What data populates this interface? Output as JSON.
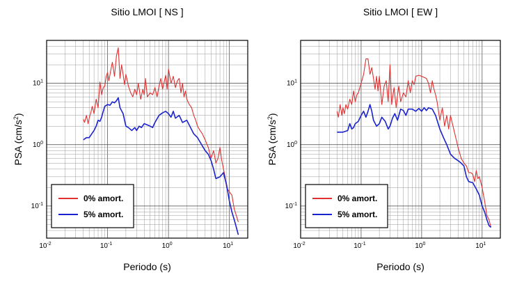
{
  "chart_data": [
    {
      "type": "line",
      "title": "Sitio LMOI [ NS ]",
      "xlabel": "Periodo (s)",
      "ylabel": "PSA (cm/s",
      "ylabel_sup": "2",
      "ylabel_close": ")",
      "xscale": "log",
      "yscale": "log",
      "xlim": [
        0.01,
        20
      ],
      "ylim": [
        0.03,
        50
      ],
      "grid": true,
      "legend_position": "bottom-left",
      "x_ticks": [
        {
          "base": "10",
          "exp": "-2"
        },
        {
          "base": "10",
          "exp": "-1"
        },
        {
          "base": "10",
          "exp": "0"
        },
        {
          "base": "10",
          "exp": "1"
        }
      ],
      "y_ticks": [
        {
          "base": "10",
          "exp": "-1"
        },
        {
          "base": "10",
          "exp": "0"
        },
        {
          "base": "10",
          "exp": "1"
        }
      ],
      "series": [
        {
          "name": "0% amort.",
          "color": "#e03030",
          "x": [
            0.04,
            0.042,
            0.045,
            0.048,
            0.05,
            0.053,
            0.056,
            0.06,
            0.065,
            0.07,
            0.075,
            0.08,
            0.085,
            0.09,
            0.095,
            0.1,
            0.105,
            0.11,
            0.115,
            0.12,
            0.13,
            0.14,
            0.15,
            0.16,
            0.17,
            0.18,
            0.19,
            0.2,
            0.22,
            0.24,
            0.26,
            0.28,
            0.3,
            0.32,
            0.35,
            0.38,
            0.4,
            0.42,
            0.45,
            0.5,
            0.55,
            0.6,
            0.65,
            0.7,
            0.75,
            0.8,
            0.85,
            0.9,
            0.95,
            1.0,
            1.1,
            1.2,
            1.3,
            1.4,
            1.5,
            1.6,
            1.7,
            1.8,
            1.9,
            2.0,
            2.2,
            2.4,
            2.6,
            2.8,
            3.0,
            3.3,
            3.6,
            4.0,
            4.5,
            5.0,
            5.5,
            6.0,
            6.5,
            7.0,
            7.5,
            8.0,
            8.5,
            9.0,
            10.0,
            11.0,
            12.0,
            13.0,
            14.0
          ],
          "values": [
            2.6,
            2.3,
            3.0,
            2.2,
            2.7,
            3.3,
            4.2,
            3.2,
            5.5,
            4.0,
            10.5,
            6.5,
            8.5,
            9.0,
            13.0,
            15.0,
            11.0,
            14.0,
            18.0,
            22.0,
            13.0,
            28.0,
            38.0,
            12.0,
            20.0,
            14.0,
            9.5,
            14.0,
            9.0,
            7.0,
            6.0,
            8.0,
            6.5,
            10.0,
            5.5,
            8.0,
            6.5,
            12.0,
            6.0,
            7.0,
            6.5,
            8.5,
            6.0,
            9.0,
            12.0,
            8.0,
            10.5,
            13.5,
            8.0,
            17.0,
            10.0,
            13.0,
            8.5,
            11.0,
            12.0,
            7.0,
            10.0,
            6.0,
            7.5,
            5.5,
            4.5,
            4.0,
            3.0,
            2.5,
            2.0,
            1.7,
            1.5,
            1.2,
            0.9,
            0.6,
            0.8,
            0.5,
            0.6,
            0.9,
            0.55,
            0.4,
            0.3,
            0.2,
            0.17,
            0.15,
            0.09,
            0.07,
            0.055
          ]
        },
        {
          "name": "5% amort.",
          "color": "#1a22d0",
          "x": [
            0.04,
            0.045,
            0.05,
            0.055,
            0.06,
            0.065,
            0.07,
            0.075,
            0.08,
            0.085,
            0.09,
            0.1,
            0.11,
            0.12,
            0.13,
            0.14,
            0.15,
            0.16,
            0.18,
            0.2,
            0.22,
            0.25,
            0.28,
            0.3,
            0.33,
            0.36,
            0.4,
            0.45,
            0.5,
            0.55,
            0.6,
            0.7,
            0.8,
            0.9,
            1.0,
            1.1,
            1.2,
            1.3,
            1.5,
            1.7,
            2.0,
            2.3,
            2.6,
            3.0,
            3.5,
            4.0,
            4.5,
            5.0,
            5.5,
            6.0,
            7.0,
            8.0,
            9.0,
            10.0,
            11.0,
            12.0,
            13.0,
            14.0
          ],
          "values": [
            1.2,
            1.3,
            1.3,
            1.5,
            1.7,
            2.0,
            2.5,
            2.4,
            2.8,
            3.5,
            4.2,
            4.5,
            4.4,
            5.0,
            4.8,
            5.2,
            5.8,
            4.0,
            3.2,
            2.0,
            1.9,
            1.7,
            1.9,
            1.7,
            2.0,
            1.9,
            2.2,
            2.1,
            2.0,
            1.9,
            2.3,
            3.0,
            3.3,
            3.5,
            3.2,
            2.8,
            3.5,
            2.7,
            3.0,
            2.3,
            2.5,
            1.9,
            1.5,
            1.3,
            1.0,
            0.8,
            0.7,
            0.55,
            0.4,
            0.28,
            0.3,
            0.35,
            0.22,
            0.12,
            0.08,
            0.06,
            0.045,
            0.034
          ]
        }
      ]
    },
    {
      "type": "line",
      "title": "Sitio LMOI [ EW ]",
      "xlabel": "Periodo (s)",
      "ylabel": "PSA (cm/s",
      "ylabel_sup": "2",
      "ylabel_close": ")",
      "xscale": "log",
      "yscale": "log",
      "xlim": [
        0.01,
        20
      ],
      "ylim": [
        0.03,
        50
      ],
      "grid": true,
      "legend_position": "bottom-left",
      "x_ticks": [
        {
          "base": "10",
          "exp": "-2"
        },
        {
          "base": "10",
          "exp": "-1"
        },
        {
          "base": "10",
          "exp": "0"
        },
        {
          "base": "10",
          "exp": "1"
        }
      ],
      "y_ticks": [
        {
          "base": "10",
          "exp": "-1"
        },
        {
          "base": "10",
          "exp": "0"
        },
        {
          "base": "10",
          "exp": "1"
        }
      ],
      "series": [
        {
          "name": "0% amort.",
          "color": "#e03030",
          "x": [
            0.04,
            0.042,
            0.045,
            0.048,
            0.05,
            0.053,
            0.056,
            0.06,
            0.065,
            0.07,
            0.075,
            0.08,
            0.085,
            0.09,
            0.1,
            0.11,
            0.12,
            0.13,
            0.14,
            0.15,
            0.16,
            0.17,
            0.18,
            0.19,
            0.2,
            0.22,
            0.24,
            0.26,
            0.28,
            0.3,
            0.32,
            0.35,
            0.38,
            0.4,
            0.42,
            0.45,
            0.5,
            0.55,
            0.6,
            0.65,
            0.7,
            0.75,
            0.8,
            0.9,
            1.0,
            1.1,
            1.2,
            1.3,
            1.4,
            1.5,
            1.6,
            1.7,
            1.8,
            2.0,
            2.2,
            2.4,
            2.6,
            2.8,
            3.0,
            3.3,
            3.6,
            4.0,
            4.5,
            5.0,
            5.5,
            6.0,
            6.5,
            7.0,
            7.5,
            8.0,
            8.5,
            9.0,
            10.0,
            11.0,
            12.0,
            13.0,
            14.0
          ],
          "values": [
            3.5,
            2.8,
            4.5,
            3.0,
            4.0,
            3.2,
            4.5,
            3.8,
            5.5,
            4.5,
            7.5,
            5.0,
            6.5,
            7.0,
            10.0,
            14.0,
            25.0,
            25.0,
            14.0,
            18.0,
            12.0,
            8.0,
            13.0,
            7.5,
            13.0,
            4.5,
            9.0,
            11.0,
            5.0,
            20.0,
            4.5,
            8.5,
            4.0,
            6.5,
            9.0,
            5.0,
            7.0,
            6.0,
            11.0,
            7.0,
            11.0,
            9.5,
            13.0,
            13.5,
            13.0,
            12.5,
            12.0,
            10.0,
            7.0,
            11.0,
            8.0,
            6.5,
            5.0,
            2.5,
            4.0,
            2.0,
            3.0,
            1.8,
            3.0,
            2.0,
            1.4,
            0.9,
            0.6,
            0.5,
            0.45,
            0.35,
            0.35,
            0.33,
            0.25,
            0.38,
            0.28,
            0.3,
            0.2,
            0.12,
            0.07,
            0.06,
            0.045
          ]
        },
        {
          "name": "5% amort.",
          "color": "#1a22d0",
          "x": [
            0.04,
            0.05,
            0.06,
            0.065,
            0.07,
            0.075,
            0.08,
            0.09,
            0.1,
            0.11,
            0.12,
            0.13,
            0.14,
            0.15,
            0.16,
            0.18,
            0.2,
            0.22,
            0.25,
            0.28,
            0.3,
            0.33,
            0.36,
            0.4,
            0.45,
            0.5,
            0.55,
            0.6,
            0.7,
            0.8,
            0.9,
            1.0,
            1.1,
            1.2,
            1.3,
            1.5,
            1.7,
            2.0,
            2.3,
            2.6,
            3.0,
            3.5,
            4.0,
            4.5,
            5.0,
            5.5,
            6.0,
            7.0,
            8.0,
            9.0,
            10.0,
            11.0,
            12.0,
            13.0,
            14.0
          ],
          "values": [
            1.6,
            1.6,
            1.7,
            2.2,
            1.8,
            1.9,
            2.2,
            2.4,
            3.0,
            3.5,
            2.8,
            3.5,
            4.5,
            3.5,
            2.5,
            2.0,
            2.2,
            2.8,
            2.4,
            1.8,
            2.0,
            2.7,
            3.2,
            2.5,
            3.8,
            3.6,
            3.0,
            3.8,
            3.8,
            3.5,
            3.9,
            3.5,
            4.0,
            3.6,
            4.0,
            3.8,
            3.0,
            1.8,
            1.3,
            1.0,
            0.7,
            0.6,
            0.55,
            0.5,
            0.45,
            0.3,
            0.25,
            0.24,
            0.19,
            0.15,
            0.1,
            0.08,
            0.06,
            0.048,
            0.045
          ]
        }
      ]
    }
  ]
}
